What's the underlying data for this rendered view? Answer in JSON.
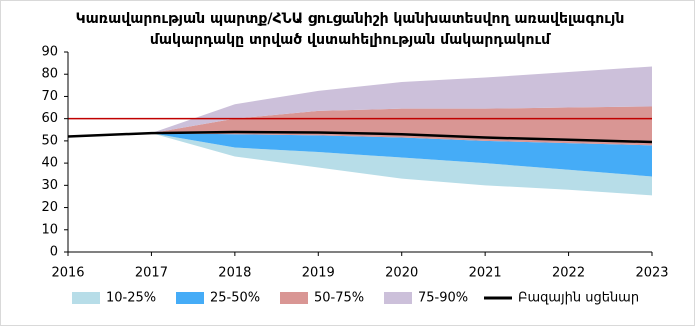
{
  "chart_data": {
    "type": "fan",
    "title": [
      "Կառավարության պարտք/ՀՆԱ ցուցանիշի կանխատեսվող առավելագույն",
      "մակարդակը տրված վստահելիության մակարդակում"
    ],
    "x": [
      2016,
      2017,
      2018,
      2019,
      2020,
      2021,
      2022,
      2023
    ],
    "xlim": [
      2016,
      2023
    ],
    "xticks": [
      2016,
      2017,
      2018,
      2019,
      2020,
      2021,
      2022,
      2023
    ],
    "ylim": [
      0,
      90
    ],
    "yticks": [
      0,
      10,
      20,
      30,
      40,
      50,
      60,
      70,
      80,
      90
    ],
    "series": [
      {
        "name": "10-25%",
        "color": "#b7dde8",
        "lower": [
          null,
          53.5,
          43,
          38,
          33,
          30,
          28,
          25.5
        ],
        "values": [
          null,
          53.5,
          47,
          45,
          42.5,
          40,
          37,
          34
        ]
      },
      {
        "name": "25-50%",
        "color": "#45acf7",
        "lower": [
          null,
          53.5,
          47,
          45,
          42.5,
          40,
          37,
          34
        ],
        "values": [
          null,
          53.5,
          53,
          52.5,
          51.5,
          50,
          49,
          48
        ]
      },
      {
        "name": "50-75%",
        "color": "#d99694",
        "lower": [
          null,
          53.5,
          53,
          52.5,
          51.5,
          50,
          49,
          48
        ],
        "values": [
          null,
          53.5,
          60,
          63.5,
          64.5,
          64.5,
          65,
          65.5
        ]
      },
      {
        "name": "75-90%",
        "color": "#ccc0da",
        "lower": [
          null,
          53.5,
          60,
          63.5,
          64.5,
          64.5,
          65,
          65.5
        ],
        "values": [
          null,
          53.5,
          66.5,
          72.5,
          76.5,
          78.5,
          81,
          83.5
        ]
      },
      {
        "name": "Բազային սցենար",
        "color": "#000000",
        "values": [
          52,
          53.5,
          54,
          53.8,
          53,
          51.5,
          50.5,
          49.5
        ]
      }
    ],
    "reference_line": {
      "value": 60,
      "color": "#c00000"
    }
  }
}
